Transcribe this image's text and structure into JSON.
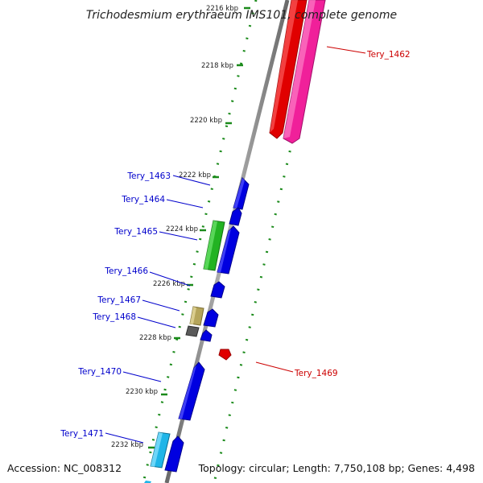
{
  "title": "Trichodesmium erythraeum IMS101, complete genome",
  "footer": {
    "accession": "Accession: NC_008312",
    "summary": "Topology: circular; Length: 7,750,108 bp; Genes: 4,498"
  },
  "colors": {
    "backbone": "#8c8c8c",
    "tick": "#1a8a1a",
    "label_forward": "#0000cc",
    "label_reverse": "#cc0000"
  },
  "ticks": [
    {
      "label": "2216 kbp"
    },
    {
      "label": "2218 kbp"
    },
    {
      "label": "2220 kbp"
    },
    {
      "label": "2222 kbp"
    },
    {
      "label": "2224 kbp"
    },
    {
      "label": "2226 kbp"
    },
    {
      "label": "2228 kbp"
    },
    {
      "label": "2230 kbp"
    },
    {
      "label": "2232 kbp"
    }
  ],
  "gene_labels": [
    {
      "id": "Tery_1462",
      "strand": "reverse"
    },
    {
      "id": "Tery_1463",
      "strand": "forward"
    },
    {
      "id": "Tery_1464",
      "strand": "forward"
    },
    {
      "id": "Tery_1465",
      "strand": "forward"
    },
    {
      "id": "Tery_1466",
      "strand": "forward"
    },
    {
      "id": "Tery_1467",
      "strand": "forward"
    },
    {
      "id": "Tery_1468",
      "strand": "forward"
    },
    {
      "id": "Tery_1469",
      "strand": "reverse"
    },
    {
      "id": "Tery_1470",
      "strand": "forward"
    },
    {
      "id": "Tery_1471",
      "strand": "forward"
    }
  ]
}
